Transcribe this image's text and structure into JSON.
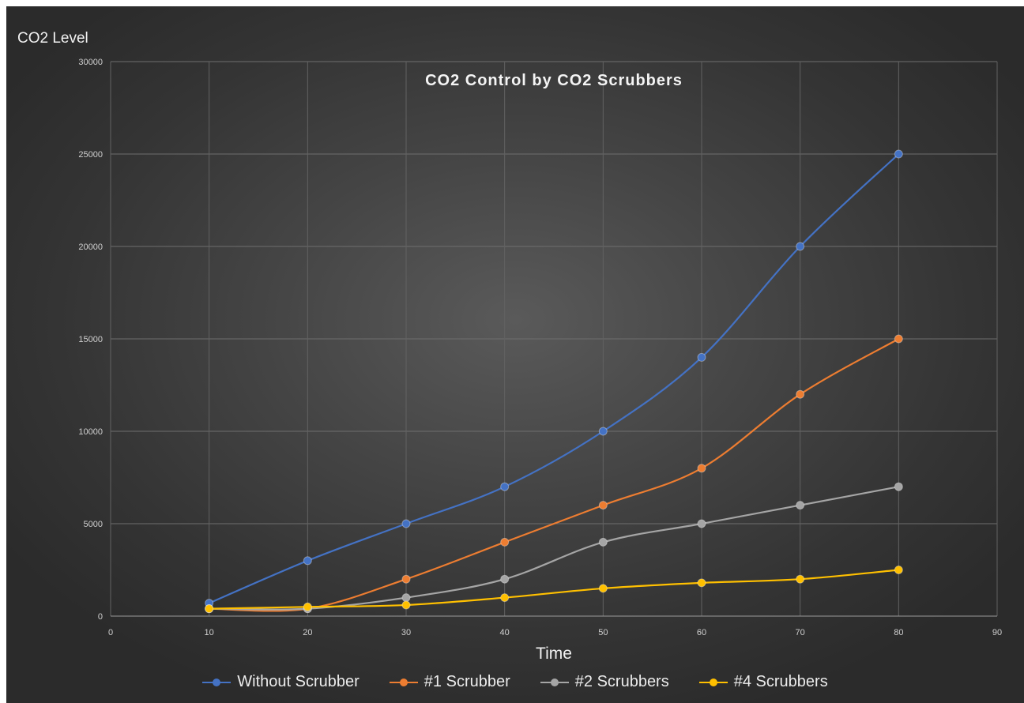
{
  "chart_data": {
    "type": "line",
    "title": "CO2 Control by CO2 Scrubbers",
    "xlabel": "Time",
    "ylabel": "CO2 Level",
    "xlim": [
      0,
      90
    ],
    "ylim": [
      0,
      30000
    ],
    "xticks": [
      "0",
      "10",
      "20",
      "30",
      "40",
      "50",
      "60",
      "70",
      "80",
      "90"
    ],
    "yticks": [
      "0",
      "5000",
      "10000",
      "15000",
      "20000",
      "25000",
      "30000"
    ],
    "grid": true,
    "smooth": true,
    "legend_position": "bottom",
    "x": [
      10,
      20,
      30,
      40,
      50,
      60,
      70,
      80
    ],
    "series": [
      {
        "name": "Without Scrubber",
        "color": "#4472c4",
        "values": [
          700,
          3000,
          5000,
          7000,
          10000,
          14000,
          20000,
          25000
        ]
      },
      {
        "name": "#1 Scrubber",
        "color": "#ed7d31",
        "values": [
          400,
          400,
          2000,
          4000,
          6000,
          8000,
          12000,
          15000
        ]
      },
      {
        "name": "#2 Scrubbers",
        "color": "#a5a5a5",
        "values": [
          400,
          400,
          1000,
          2000,
          4000,
          5000,
          6000,
          7000
        ]
      },
      {
        "name": "#4 Scrubbers",
        "color": "#ffc000",
        "values": [
          400,
          500,
          600,
          1000,
          1500,
          1800,
          2000,
          2500
        ]
      }
    ]
  }
}
